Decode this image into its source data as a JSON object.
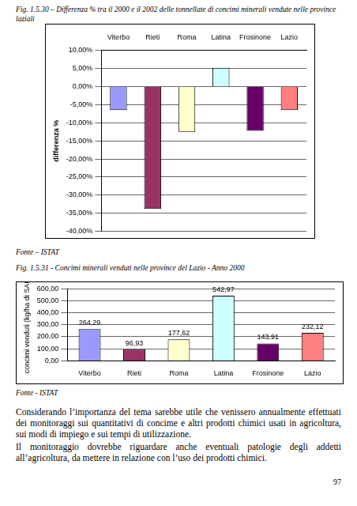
{
  "chart_data": [
    {
      "type": "bar",
      "title": "Fig. 1.5.30 – Differenza % tra il 2000 e il 2002 delle tonnellate di concimi minerali vendute nelle province laziali",
      "y_label": "differenza %",
      "categories": [
        "Viterbo",
        "Rieti",
        "Roma",
        "Latina",
        "Frosinone",
        "Lazio"
      ],
      "values": [
        -6.5,
        -33.8,
        -12.5,
        5.2,
        -12.2,
        -6.5
      ],
      "colors": [
        "#9999ff",
        "#993366",
        "#ffffcc",
        "#ccffff",
        "#660066",
        "#ff8080"
      ],
      "ylim": [
        -40,
        10
      ],
      "yticks": [
        {
          "value": -40,
          "label": "-40,00%"
        },
        {
          "value": -35,
          "label": "-35,00%"
        },
        {
          "value": -30,
          "label": "-30,00%"
        },
        {
          "value": -25,
          "label": "-25,00%"
        },
        {
          "value": -20,
          "label": "-20,00%"
        },
        {
          "value": -15,
          "label": "-15,00%"
        },
        {
          "value": -10,
          "label": "-10,00%"
        },
        {
          "value": -5,
          "label": "-5,00%"
        },
        {
          "value": 0,
          "label": "0,00%"
        },
        {
          "value": 5,
          "label": "5,00%"
        },
        {
          "value": 10,
          "label": "10,00%"
        }
      ],
      "grid": true,
      "data_labels": false,
      "annotations": [
        "Fonte – ISTAT"
      ]
    },
    {
      "type": "bar",
      "title": "Fig. 1.5.31 - Concimi minerali venduti nelle province del Lazio - Anno 2000",
      "y_label": "concimi venduti (kg/ha di SAU)",
      "categories": [
        "Viterbo",
        "Rieti",
        "Roma",
        "Latina",
        "Frosinone",
        "Lazio"
      ],
      "values": [
        264.29,
        96.93,
        177.62,
        542.97,
        143.91,
        232.12
      ],
      "value_labels": [
        "264,29",
        "96,93",
        "177,62",
        "542,97",
        "143,91",
        "232,12"
      ],
      "colors": [
        "#9999ff",
        "#993366",
        "#ffffcc",
        "#ccffff",
        "#660066",
        "#ff8080"
      ],
      "ylim": [
        0,
        600
      ],
      "yticks": [
        {
          "value": 0,
          "label": "0,00"
        },
        {
          "value": 100,
          "label": "100,00"
        },
        {
          "value": 200,
          "label": "200,00"
        },
        {
          "value": 300,
          "label": "300,00"
        },
        {
          "value": 400,
          "label": "400,00"
        },
        {
          "value": 500,
          "label": "500,00"
        },
        {
          "value": 600,
          "label": "600,00"
        }
      ],
      "grid": true,
      "data_labels": true,
      "annotations": [
        "Fonte - ISTAT"
      ]
    }
  ],
  "paragraphs": [
    "Considerando l’importanza del tema sarebbe utile che venissero annualmente effettuati dei monitoraggi sui quantitativi di concime e altri prodotti chimici usati in agricoltura, sui modi di impiego e sui tempi di utilizzazione.",
    "Il monitoraggio dovrebbe riguardare anche eventuali patologie degli addetti all’agricoltura, da mettere in relazione con l’uso dei prodotti chimici."
  ],
  "page_number": 97
}
